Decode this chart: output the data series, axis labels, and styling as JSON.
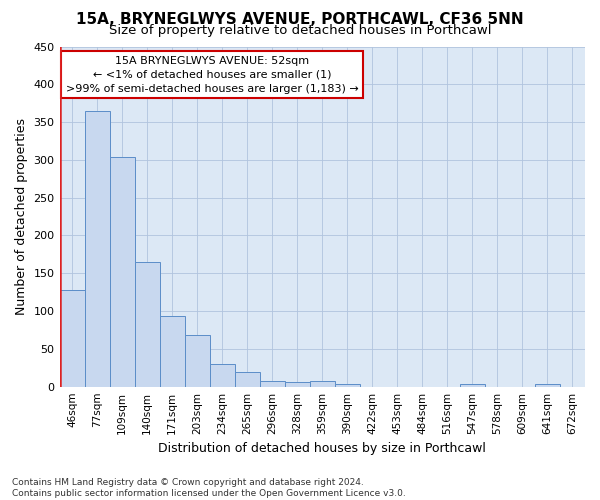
{
  "title": "15A, BRYNEGLWYS AVENUE, PORTHCAWL, CF36 5NN",
  "subtitle": "Size of property relative to detached houses in Porthcawl",
  "xlabel": "Distribution of detached houses by size in Porthcawl",
  "ylabel": "Number of detached properties",
  "bar_labels": [
    "46sqm",
    "77sqm",
    "109sqm",
    "140sqm",
    "171sqm",
    "203sqm",
    "234sqm",
    "265sqm",
    "296sqm",
    "328sqm",
    "359sqm",
    "390sqm",
    "422sqm",
    "453sqm",
    "484sqm",
    "516sqm",
    "547sqm",
    "578sqm",
    "609sqm",
    "641sqm",
    "672sqm"
  ],
  "bar_values": [
    128,
    365,
    304,
    165,
    94,
    68,
    30,
    19,
    8,
    6,
    8,
    4,
    0,
    0,
    0,
    0,
    4,
    0,
    0,
    4,
    0
  ],
  "bar_color": "#c8d8ef",
  "bar_edge_color": "#5b8dc8",
  "highlight_color": "#dd2222",
  "ylim": [
    0,
    450
  ],
  "yticks": [
    0,
    50,
    100,
    150,
    200,
    250,
    300,
    350,
    400,
    450
  ],
  "annotation_line1": "15A BRYNEGLWYS AVENUE: 52sqm",
  "annotation_line2": "← <1% of detached houses are smaller (1)",
  "annotation_line3": ">99% of semi-detached houses are larger (1,183) →",
  "annotation_box_edge_color": "#cc0000",
  "footer_text": "Contains HM Land Registry data © Crown copyright and database right 2024.\nContains public sector information licensed under the Open Government Licence v3.0.",
  "plot_bg_color": "#dce8f5",
  "fig_bg_color": "#ffffff",
  "grid_color": "#b0c4de",
  "title_fontsize": 11,
  "subtitle_fontsize": 9.5,
  "axis_label_fontsize": 9,
  "tick_fontsize": 7.5,
  "footer_fontsize": 6.5,
  "ann_fontsize": 8
}
